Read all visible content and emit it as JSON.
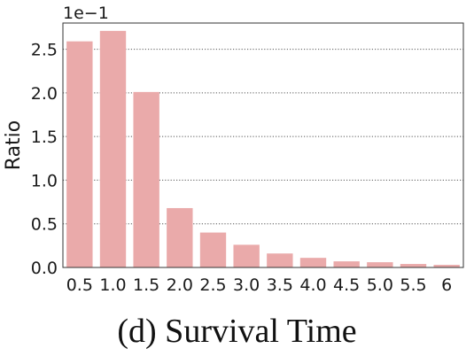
{
  "chart_data": {
    "type": "bar",
    "categories": [
      "0.5",
      "1.0",
      "1.5",
      "2.0",
      "2.5",
      "3.0",
      "3.5",
      "4.0",
      "4.5",
      "5.0",
      "5.5",
      "6"
    ],
    "values": [
      2.59,
      2.71,
      2.01,
      0.68,
      0.4,
      0.26,
      0.16,
      0.11,
      0.07,
      0.06,
      0.04,
      0.03
    ],
    "ylabel": "Ratio",
    "xlabel": "",
    "y_scale_label": "1e−1",
    "yticks": [
      "0.0",
      "0.5",
      "1.0",
      "1.5",
      "2.0",
      "2.5"
    ],
    "ylim": [
      0,
      2.8
    ],
    "grid": "horizontal-dotted",
    "bar_color": "#eaaaaa"
  },
  "caption": "(d)  Survival Time"
}
